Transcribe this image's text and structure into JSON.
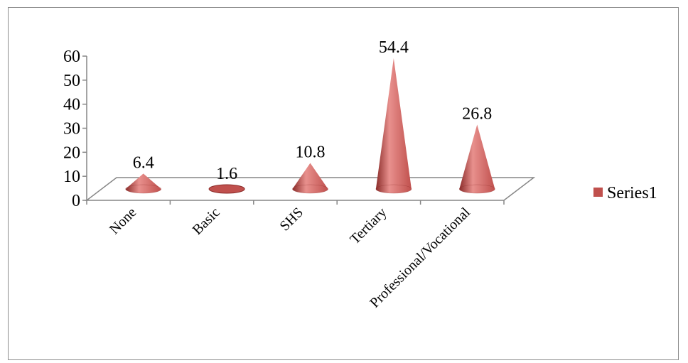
{
  "chart_data": {
    "type": "bar",
    "style": "3d-cone",
    "categories": [
      "None",
      "Basic",
      "SHS",
      "Tertiary",
      "Professional/Vocational"
    ],
    "series": [
      {
        "name": "Series1",
        "values": [
          6.4,
          1.6,
          10.8,
          54.4,
          26.8
        ]
      }
    ],
    "data_labels": [
      "6.4",
      "1.6",
      "10.8",
      "54.4",
      "26.8"
    ],
    "yticks": [
      "0",
      "10",
      "20",
      "30",
      "40",
      "50",
      "60"
    ],
    "ylim": [
      0,
      60
    ],
    "title": "",
    "xlabel": "",
    "ylabel": "",
    "grid": false,
    "legend_position": "right",
    "colors": {
      "series": "#c0504d",
      "series_dark": "#8b2c2a",
      "series_light": "#e8908d",
      "axis": "#868686"
    }
  }
}
